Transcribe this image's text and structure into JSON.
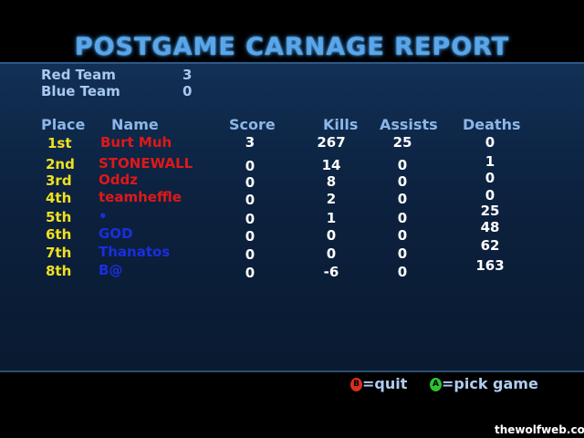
{
  "title": "POSTGAME CARNAGE REPORT",
  "teams": [
    {
      "name": "Red Team",
      "score": "3"
    },
    {
      "name": "Blue Team",
      "score": "0"
    }
  ],
  "headers": {
    "place": "Place",
    "name": "Name",
    "score": "Score",
    "kills": "Kills",
    "assists": "Assists",
    "deaths": "Deaths"
  },
  "rows": [
    {
      "place": "1st",
      "name": "Burt Muh",
      "team": "red",
      "score": "3",
      "kills": "267",
      "assists": "25",
      "deaths": "0"
    },
    {
      "place": "2nd",
      "name": "STONEWALL",
      "team": "red",
      "score": "0",
      "kills": "14",
      "assists": "0",
      "deaths": "1"
    },
    {
      "place": "3rd",
      "name": "Oddz",
      "team": "red",
      "score": "0",
      "kills": "8",
      "assists": "0",
      "deaths": "0"
    },
    {
      "place": "4th",
      "name": "teamheffle",
      "team": "red",
      "score": "0",
      "kills": "2",
      "assists": "0",
      "deaths": "0"
    },
    {
      "place": "5th",
      "name": "•",
      "team": "blue",
      "score": "0",
      "kills": "1",
      "assists": "0",
      "deaths": "25"
    },
    {
      "place": "6th",
      "name": "GOD",
      "team": "blue",
      "score": "0",
      "kills": "0",
      "assists": "0",
      "deaths": "48"
    },
    {
      "place": "7th",
      "name": "Thanatos",
      "team": "blue",
      "score": "0",
      "kills": "0",
      "assists": "0",
      "deaths": "62"
    },
    {
      "place": "8th",
      "name": "B@",
      "team": "blue",
      "score": "0",
      "kills": "-6",
      "assists": "0",
      "deaths": "163"
    }
  ],
  "footer": {
    "b_glyph": "B",
    "quit": "=quit",
    "a_glyph": "A",
    "pick": "=pick game",
    "b_color": "#d83020",
    "a_color": "#30c030"
  },
  "watermark": "thewolfweb.com"
}
